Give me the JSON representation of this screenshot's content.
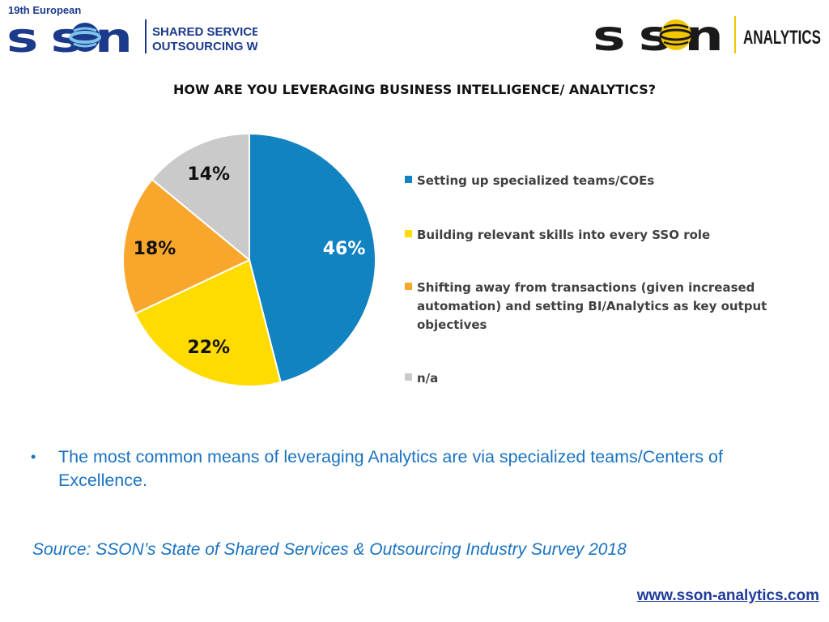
{
  "header": {
    "left_logo": {
      "edition": "19th European",
      "brand": "SSON",
      "line1": "SHARED SERVICES &",
      "line2": "OUTSOURCING WEEK"
    },
    "right_logo": {
      "brand": "SSON",
      "suffix": "ANALYTICS"
    }
  },
  "colors": {
    "accent_text": "#1a73c1",
    "link": "#1f3c99",
    "brand_navy": "#1b3a8c",
    "logo_yellow": "#f2c500"
  },
  "chart_data": {
    "type": "pie",
    "title": "HOW ARE YOU LEVERAGING BUSINESS INTELLIGENCE/ ANALYTICS?",
    "start_angle_deg": 0,
    "direction": "clockwise",
    "legend_position": "right",
    "slices": [
      {
        "label": "Setting up specialized teams/COEs",
        "value": 46,
        "display": "46%",
        "color": "#1183c0",
        "label_color": "#ffffff"
      },
      {
        "label": "Building relevant skills into every SSO role",
        "value": 22,
        "display": "22%",
        "color": "#ffdb00",
        "label_color": "#111111"
      },
      {
        "label": "Shifting away from transactions (given increased automation) and setting BI/Analytics as key output objectives",
        "value": 18,
        "display": "18%",
        "color": "#f9a72c",
        "label_color": "#111111"
      },
      {
        "label": "n/a",
        "value": 14,
        "display": "14%",
        "color": "#cacaca",
        "label_color": "#111111"
      }
    ]
  },
  "body": {
    "bullet": "The most common means of leveraging Analytics are via specialized teams/Centers of Excellence.",
    "source": "Source: SSON’s State of Shared Services & Outsourcing Industry Survey 2018",
    "url": "www.sson-analytics.com"
  }
}
